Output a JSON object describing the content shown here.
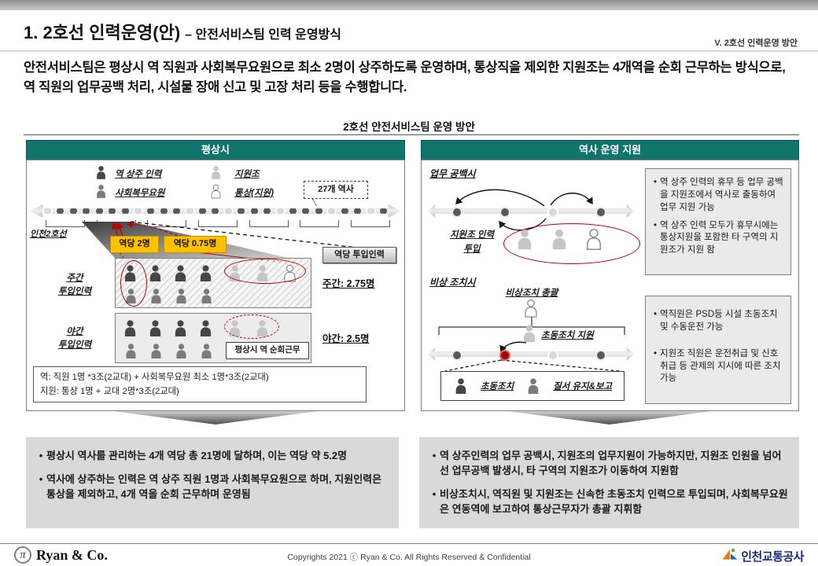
{
  "colors": {
    "teal": "#0F756D",
    "accent_yellow": "#FFC000",
    "accent_red": "#C00000"
  },
  "header": {
    "title": "1. 2호선 인력운영(안)",
    "subtitle": "– 안전서비스팀 인력 운영방식",
    "section_ref": "V. 2호선 인력운영 방안"
  },
  "intro": "안전서비스팀은 평상시 역 직원과 사회복무요원으로 최소 2명이 상주하도록 운영하며, 통상직을 제외한 지원조는 4개역을 순회 근무하는 방식으로, 역 직원의 업무공백 처리, 시설물 장애 신고 및 고장 처리 등을 수행합니다.",
  "diagram_title": "2호선 안전서비스팀 운영 방안",
  "normal_panel": {
    "header": "평상시",
    "legend": [
      {
        "icon": "person-dark-icon",
        "label": "역 상주 인력"
      },
      {
        "icon": "person-gray-icon",
        "label": "사회복무요원"
      },
      {
        "icon": "person-light-icon",
        "label": "지원조"
      },
      {
        "icon": "person-white-icon",
        "label": "통상(지원)"
      }
    ],
    "station_callout": "27개 역사",
    "line_label": "인천2호선",
    "badge_per_station_2": "역당 2명",
    "badge_per_station_075": "역당 0.75명",
    "day_label_line1": "주간",
    "day_label_line2": "투입인력",
    "night_label_line1": "야간",
    "night_label_line2": "투입인력",
    "per_station_chip": "역당 투입인력",
    "day_total": "주간: 2.75명",
    "night_total": "야간: 2.5명",
    "patrol_note": "평상시 역 순회근무",
    "formula_line1": "역: 직원 1명 *3조(2교대) + 사회복무요원 최소 1명*3조(2교대)",
    "formula_line2": "지원: 통상 1명 + 교대 2명*3조(2교대)"
  },
  "support_panel": {
    "header": "역사 운영 지원",
    "gap_section_title": "업무 공백시",
    "gap_deploy_line1": "지원조 인력",
    "gap_deploy_line2": "투입",
    "gap_notes": [
      "역 상주 인력의 휴무 등 업무 공백을 지원조에서 역사로 출동하여 업무 지원 가능",
      "역 상주 인력 모두가 휴무시에는 통상지원을 포함한 타 구역의 지원조가 지원 함"
    ],
    "emergency_section_title": "비상 조치시",
    "emergency_lead": "비상조치 총괄",
    "first_response_support": "초동조치 지원",
    "role_first_response": "초동조치",
    "role_order_report": "질서 유지&보고",
    "emergency_notes": [
      "역직원은 PSD등 시설 초동조치 및 수동운전 가능",
      "지원조 직원은 운전취급 및 신호취급 등 관제의 지시에 따른 조치 가능"
    ]
  },
  "summary": {
    "normal_bullets": [
      "평상시 역사를 관리하는 4개 역당 총 21명에 달하며, 이는 역당 약 5.2명",
      "역사에 상주하는 인력은 역 상주 직원 1명과 사회복무요원으로 하며, 지원인력은 통상을 제외하고, 4개 역을 순회 근무하며 운영됨"
    ],
    "support_bullets": [
      "역 상주인력의 업무 공백시, 지원조의 업무지원이 가능하지만, 지원조 인원을 넘어선 업무공백 발생시, 타 구역의 지원조가 이동하여 지원함",
      "비상조치시, 역직원 및 지원조는 신속한 초동조치 인력으로 투입되며, 사회복무요원은 연동역에 보고하여 통상근무자가 총괄 지휘함"
    ]
  },
  "footer": {
    "company": "Ryan & Co.",
    "logo_glyph": "π",
    "copyright": "Copyrights 2021 ⓒ Ryan & Co. All Rights Reserved & Confidential",
    "agency": "인천교통공사"
  }
}
